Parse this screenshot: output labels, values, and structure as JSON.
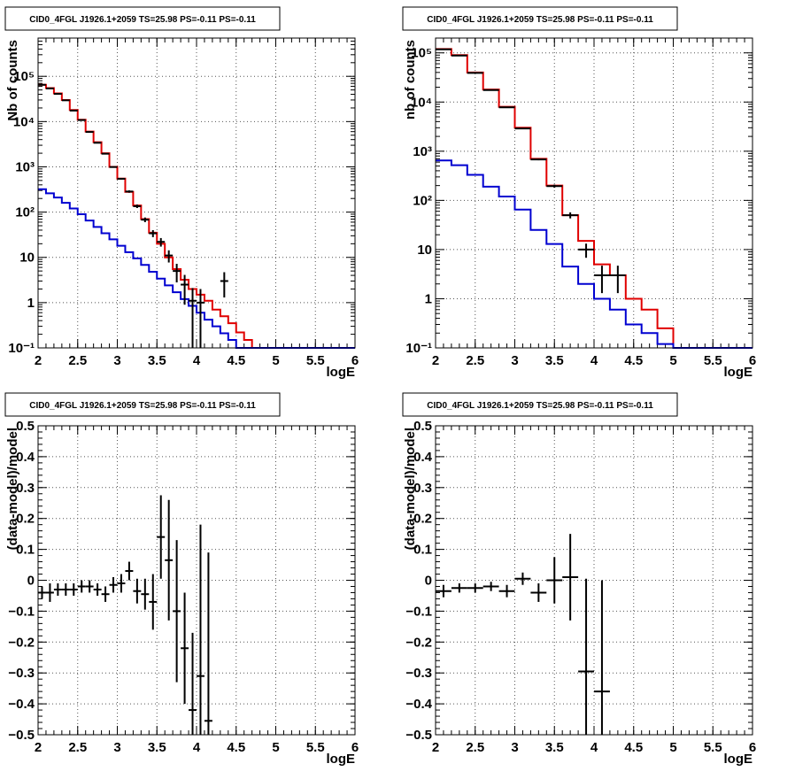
{
  "colors": {
    "data": "#000000",
    "model_total": "#e00000",
    "model_component": "#0000d0",
    "grid": "#555555"
  },
  "chart_data": [
    {
      "id": "top-left",
      "type": "line",
      "title": "CID0_4FGL J1926.1+2059 TS=25.98 PS=-0.11 PS=-0.11",
      "xlabel": "logE",
      "ylabel": "Nb of counts",
      "xlim": [
        2,
        6
      ],
      "ylim": [
        0.1,
        700000
      ],
      "yscale": "log",
      "xticks": [
        2,
        2.5,
        3,
        3.5,
        4,
        4.5,
        5,
        5.5,
        6
      ],
      "xtick_labels": [
        "2",
        "2.5",
        "3",
        "3.5",
        "4",
        "4.5",
        "5",
        "5.5",
        "6"
      ],
      "yticks": [
        0.1,
        1,
        10,
        100,
        1000,
        10000,
        100000
      ],
      "ytick_labels": [
        "10⁻¹",
        "1",
        "10",
        "10²",
        "10³",
        "10⁴",
        "10⁵"
      ],
      "grid": true,
      "series": [
        {
          "role": "model_total",
          "style": "step",
          "bin_width": 0.1,
          "x": [
            2.0,
            2.1,
            2.2,
            2.3,
            2.4,
            2.5,
            2.6,
            2.7,
            2.8,
            2.9,
            3.0,
            3.1,
            3.2,
            3.3,
            3.4,
            3.5,
            3.6,
            3.7,
            3.8,
            3.9,
            4.0,
            4.1,
            4.2,
            4.3,
            4.4,
            4.5,
            4.6,
            4.7,
            4.8,
            4.9,
            5.0,
            5.1,
            5.2,
            5.3,
            5.4,
            5.5,
            5.6,
            5.7,
            5.8,
            5.9
          ],
          "values": [
            65000,
            55000,
            42000,
            30000,
            18000,
            11000,
            6000,
            3500,
            2000,
            1000,
            550,
            280,
            140,
            70,
            35,
            20,
            10,
            5.5,
            3.2,
            2,
            1.5,
            1.1,
            0.7,
            0.5,
            0.35,
            0.22,
            0.15,
            0.1,
            0.1,
            0.1,
            0.1,
            0.1,
            0.1,
            0.1,
            0.1,
            0.1,
            0.1,
            0.1,
            0.1,
            0.1
          ]
        },
        {
          "role": "model_component",
          "style": "step",
          "bin_width": 0.1,
          "x": [
            2.0,
            2.1,
            2.2,
            2.3,
            2.4,
            2.5,
            2.6,
            2.7,
            2.8,
            2.9,
            3.0,
            3.1,
            3.2,
            3.3,
            3.4,
            3.5,
            3.6,
            3.7,
            3.8,
            3.9,
            4.0,
            4.1,
            4.2,
            4.3,
            4.4,
            4.5,
            4.6,
            4.7,
            4.8,
            4.9,
            5.0,
            5.1,
            5.2,
            5.3,
            5.4,
            5.5,
            5.6,
            5.7,
            5.8,
            5.9
          ],
          "values": [
            320,
            260,
            210,
            160,
            120,
            90,
            65,
            47,
            34,
            25,
            18,
            13,
            9.5,
            6.8,
            4.8,
            3.4,
            2.4,
            1.7,
            1.2,
            0.85,
            0.6,
            0.42,
            0.3,
            0.21,
            0.15,
            0.1,
            0.1,
            0.1,
            0.1,
            0.1,
            0.1,
            0.1,
            0.1,
            0.1,
            0.1,
            0.1,
            0.1,
            0.1,
            0.1,
            0.1
          ]
        },
        {
          "role": "data",
          "style": "errorbar",
          "x_halfwidth": 0.05,
          "points": [
            {
              "x": 2.05,
              "y": 65000,
              "err": 260
            },
            {
              "x": 2.15,
              "y": 54000,
              "err": 230
            },
            {
              "x": 2.25,
              "y": 41000,
              "err": 200
            },
            {
              "x": 2.35,
              "y": 29500,
              "err": 170
            },
            {
              "x": 2.45,
              "y": 17500,
              "err": 130
            },
            {
              "x": 2.55,
              "y": 10800,
              "err": 100
            },
            {
              "x": 2.65,
              "y": 5900,
              "err": 77
            },
            {
              "x": 2.75,
              "y": 3400,
              "err": 58
            },
            {
              "x": 2.85,
              "y": 1950,
              "err": 44
            },
            {
              "x": 2.95,
              "y": 990,
              "err": 31
            },
            {
              "x": 3.05,
              "y": 545,
              "err": 23
            },
            {
              "x": 3.15,
              "y": 285,
              "err": 17
            },
            {
              "x": 3.25,
              "y": 135,
              "err": 12
            },
            {
              "x": 3.35,
              "y": 68,
              "err": 8
            },
            {
              "x": 3.45,
              "y": 34,
              "err": 6
            },
            {
              "x": 3.55,
              "y": 22,
              "err": 4.7
            },
            {
              "x": 3.65,
              "y": 11,
              "err": 3.3
            },
            {
              "x": 3.75,
              "y": 5,
              "err": 2.2
            },
            {
              "x": 3.85,
              "y": 2.5,
              "err": 1.6
            },
            {
              "x": 3.95,
              "y": 1.1,
              "err": 1.0
            },
            {
              "x": 4.05,
              "y": 1.0,
              "err": 1.0
            },
            {
              "x": 4.35,
              "y": 3,
              "err": 1.7
            }
          ]
        }
      ]
    },
    {
      "id": "top-right",
      "type": "line",
      "title": "CID0_4FGL J1926.1+2059 TS=25.98 PS=-0.11 PS=-0.11",
      "xlabel": "logE",
      "ylabel": "nb of counts",
      "xlim": [
        2,
        6
      ],
      "ylim": [
        0.1,
        200000
      ],
      "yscale": "log",
      "xticks": [
        2,
        2.5,
        3,
        3.5,
        4,
        4.5,
        5,
        5.5,
        6
      ],
      "xtick_labels": [
        "2",
        "2.5",
        "3",
        "3.5",
        "4",
        "4.5",
        "5",
        "5.5",
        "6"
      ],
      "yticks": [
        0.1,
        1,
        10,
        100,
        1000,
        10000,
        100000
      ],
      "ytick_labels": [
        "10⁻¹",
        "1",
        "10",
        "10²",
        "10³",
        "10⁴",
        "10⁵"
      ],
      "grid": true,
      "series": [
        {
          "role": "model_total",
          "style": "step",
          "bin_width": 0.2,
          "x": [
            2.0,
            2.2,
            2.4,
            2.6,
            2.8,
            3.0,
            3.2,
            3.4,
            3.6,
            3.8,
            4.0,
            4.2,
            4.4,
            4.6,
            4.8,
            5.0,
            5.2,
            5.4,
            5.6,
            5.8
          ],
          "values": [
            120000,
            90000,
            40000,
            18000,
            8000,
            3000,
            700,
            200,
            50,
            15,
            5,
            3,
            1,
            0.6,
            0.25,
            0.1,
            0.1,
            0.1,
            0.1,
            0.1
          ]
        },
        {
          "role": "model_component",
          "style": "step",
          "bin_width": 0.2,
          "x": [
            2.0,
            2.2,
            2.4,
            2.6,
            2.8,
            3.0,
            3.2,
            3.4,
            3.6,
            3.8,
            4.0,
            4.2,
            4.4,
            4.6,
            4.8,
            5.0,
            5.2,
            5.4,
            5.6,
            5.8
          ],
          "values": [
            650,
            520,
            330,
            190,
            120,
            65,
            25,
            13,
            4.5,
            2,
            1,
            0.6,
            0.3,
            0.2,
            0.12,
            0.1,
            0.1,
            0.1,
            0.1,
            0.1
          ]
        },
        {
          "role": "data",
          "style": "errorbar",
          "x_halfwidth": 0.1,
          "points": [
            {
              "x": 2.1,
              "y": 118000,
              "err": 340
            },
            {
              "x": 2.3,
              "y": 88000,
              "err": 300
            },
            {
              "x": 2.5,
              "y": 39000,
              "err": 200
            },
            {
              "x": 2.7,
              "y": 17500,
              "err": 130
            },
            {
              "x": 2.9,
              "y": 7800,
              "err": 88
            },
            {
              "x": 3.1,
              "y": 2900,
              "err": 54
            },
            {
              "x": 3.3,
              "y": 680,
              "err": 26
            },
            {
              "x": 3.5,
              "y": 195,
              "err": 14
            },
            {
              "x": 3.7,
              "y": 50,
              "err": 7
            },
            {
              "x": 3.9,
              "y": 10,
              "err": 3.2
            },
            {
              "x": 4.1,
              "y": 3,
              "err": 1.7
            },
            {
              "x": 4.3,
              "y": 3,
              "err": 1.7
            }
          ]
        }
      ]
    },
    {
      "id": "bottom-left",
      "type": "scatter",
      "title": "CID0_4FGL J1926.1+2059 TS=25.98 PS=-0.11 PS=-0.11",
      "xlabel": "logE",
      "ylabel": "(data-model)/model",
      "xlim": [
        2,
        6
      ],
      "ylim": [
        -0.5,
        0.5
      ],
      "yscale": "linear",
      "xticks": [
        2,
        2.5,
        3,
        3.5,
        4,
        4.5,
        5,
        5.5,
        6
      ],
      "xtick_labels": [
        "2",
        "2.5",
        "3",
        "3.5",
        "4",
        "4.5",
        "5",
        "5.5",
        "6"
      ],
      "yticks": [
        -0.5,
        -0.4,
        -0.3,
        -0.2,
        -0.1,
        0,
        0.1,
        0.2,
        0.3,
        0.4,
        0.5
      ],
      "ytick_labels": [
        "−0.5",
        "−0.4",
        "−0.3",
        "−0.2",
        "−0.1",
        "0",
        "0.1",
        "0.2",
        "0.3",
        "0.4",
        "0.5"
      ],
      "grid": true,
      "series": [
        {
          "role": "data",
          "style": "errorbar",
          "x_halfwidth": 0.05,
          "points": [
            {
              "x": 2.05,
              "y": -0.04,
              "err": 0.02
            },
            {
              "x": 2.15,
              "y": -0.04,
              "err": 0.03
            },
            {
              "x": 2.25,
              "y": -0.03,
              "err": 0.02
            },
            {
              "x": 2.35,
              "y": -0.03,
              "err": 0.02
            },
            {
              "x": 2.45,
              "y": -0.03,
              "err": 0.02
            },
            {
              "x": 2.55,
              "y": -0.02,
              "err": 0.02
            },
            {
              "x": 2.65,
              "y": -0.02,
              "err": 0.02
            },
            {
              "x": 2.75,
              "y": -0.03,
              "err": 0.02
            },
            {
              "x": 2.85,
              "y": -0.045,
              "err": 0.025
            },
            {
              "x": 2.95,
              "y": -0.015,
              "err": 0.025
            },
            {
              "x": 3.05,
              "y": -0.01,
              "err": 0.03
            },
            {
              "x": 3.15,
              "y": 0.03,
              "err": 0.03
            },
            {
              "x": 3.25,
              "y": -0.035,
              "err": 0.04
            },
            {
              "x": 3.35,
              "y": -0.045,
              "err": 0.05
            },
            {
              "x": 3.45,
              "y": -0.07,
              "err": 0.09
            },
            {
              "x": 3.55,
              "y": 0.14,
              "err": 0.135
            },
            {
              "x": 3.65,
              "y": 0.065,
              "err": 0.195
            },
            {
              "x": 3.75,
              "y": -0.1,
              "err": 0.23
            },
            {
              "x": 3.85,
              "y": -0.22,
              "err": 0.18
            },
            {
              "x": 3.95,
              "y": -0.42,
              "err": 0.25
            },
            {
              "x": 4.05,
              "y": -0.31,
              "err": 0.49
            },
            {
              "x": 4.15,
              "y": -0.455,
              "err": 0.545
            }
          ]
        }
      ]
    },
    {
      "id": "bottom-right",
      "type": "scatter",
      "title": "CID0_4FGL J1926.1+2059 TS=25.98 PS=-0.11 PS=-0.11",
      "xlabel": "logE",
      "ylabel": "(data-model)/model",
      "xlim": [
        2,
        6
      ],
      "ylim": [
        -0.5,
        0.5
      ],
      "yscale": "linear",
      "xticks": [
        2,
        2.5,
        3,
        3.5,
        4,
        4.5,
        5,
        5.5,
        6
      ],
      "xtick_labels": [
        "2",
        "2.5",
        "3",
        "3.5",
        "4",
        "4.5",
        "5",
        "5.5",
        "6"
      ],
      "yticks": [
        -0.5,
        -0.4,
        -0.3,
        -0.2,
        -0.1,
        0,
        0.1,
        0.2,
        0.3,
        0.4,
        0.5
      ],
      "ytick_labels": [
        "−0.5",
        "−0.4",
        "−0.3",
        "−0.2",
        "−0.1",
        "0",
        "0.1",
        "0.2",
        "0.3",
        "0.4",
        "0.5"
      ],
      "grid": true,
      "series": [
        {
          "role": "data",
          "style": "errorbar",
          "x_halfwidth": 0.1,
          "points": [
            {
              "x": 2.1,
              "y": -0.035,
              "err": 0.02
            },
            {
              "x": 2.3,
              "y": -0.025,
              "err": 0.015
            },
            {
              "x": 2.5,
              "y": -0.025,
              "err": 0.015
            },
            {
              "x": 2.7,
              "y": -0.02,
              "err": 0.015
            },
            {
              "x": 2.9,
              "y": -0.035,
              "err": 0.02
            },
            {
              "x": 3.1,
              "y": 0.005,
              "err": 0.02
            },
            {
              "x": 3.3,
              "y": -0.04,
              "err": 0.03
            },
            {
              "x": 3.5,
              "y": 0.0,
              "err": 0.075
            },
            {
              "x": 3.7,
              "y": 0.01,
              "err": 0.14
            },
            {
              "x": 3.9,
              "y": -0.295,
              "err": 0.3
            },
            {
              "x": 4.1,
              "y": -0.36,
              "err": 0.36
            }
          ]
        }
      ]
    }
  ]
}
